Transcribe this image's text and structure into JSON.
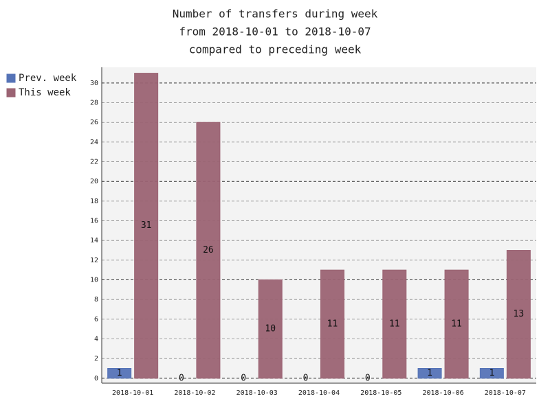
{
  "chart_data": {
    "type": "bar",
    "title": [
      "Number of transfers during week",
      "from 2018-10-01 to 2018-10-07",
      "compared to preceding week"
    ],
    "categories": [
      "2018-10-01",
      "2018-10-02",
      "2018-10-03",
      "2018-10-04",
      "2018-10-05",
      "2018-10-06",
      "2018-10-07"
    ],
    "series": [
      {
        "name": "Prev. week",
        "color": "#5573b7",
        "values": [
          1,
          0,
          0,
          0,
          0,
          1,
          1
        ]
      },
      {
        "name": "This week",
        "color": "#9b6373",
        "values": [
          31,
          26,
          10,
          11,
          11,
          11,
          13
        ]
      }
    ],
    "ylim": [
      -0.5,
      31.6
    ],
    "yticks": [
      0,
      2,
      4,
      6,
      8,
      10,
      12,
      14,
      16,
      18,
      20,
      22,
      24,
      26,
      28,
      30
    ],
    "grid": true,
    "legend": "top-left"
  }
}
